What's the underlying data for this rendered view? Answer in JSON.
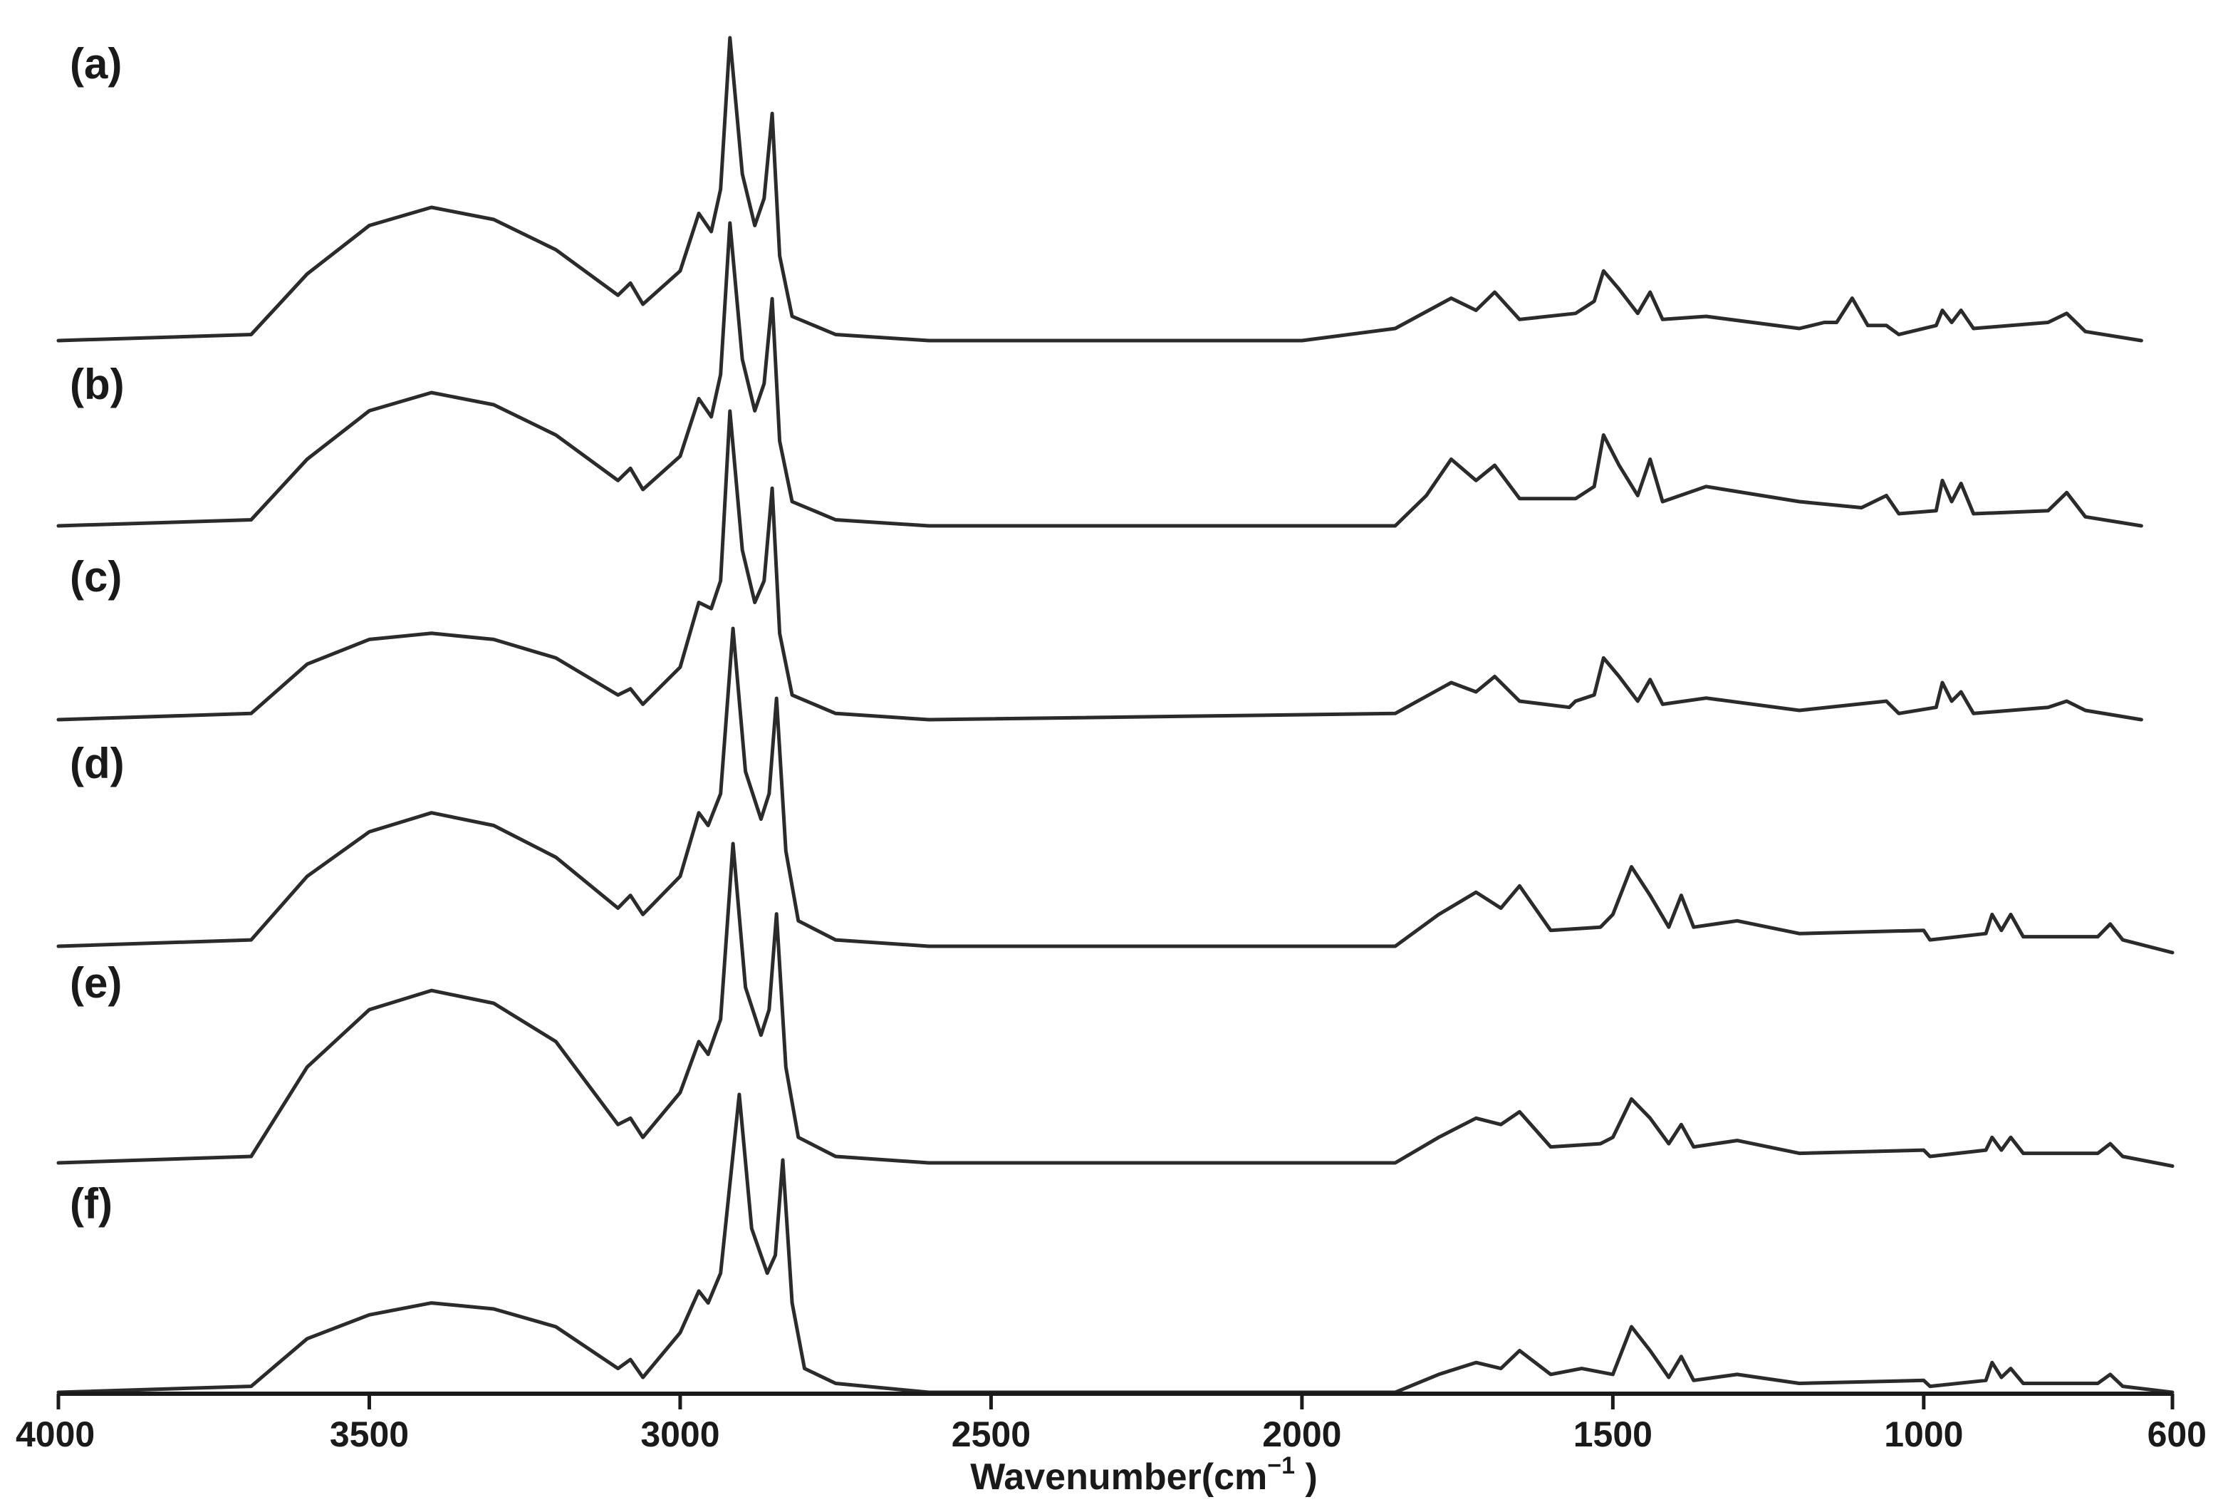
{
  "chart_data": {
    "type": "line",
    "xlabel": "Wavenumber(cm",
    "xlabel_superscript": "−1",
    "xlabel_close": " )",
    "xlim": [
      4000,
      600
    ],
    "x_reversed": true,
    "x_ticks": [
      "4000",
      "3500",
      "3000",
      "2500",
      "2000",
      "1500",
      "1000",
      "600"
    ],
    "y_axis_shown": false,
    "grid": false,
    "series": [
      {
        "name": "(a)",
        "x_end": 650,
        "points": [
          [
            4000,
            0
          ],
          [
            3690,
            0.02
          ],
          [
            3600,
            0.22
          ],
          [
            3500,
            0.38
          ],
          [
            3400,
            0.44
          ],
          [
            3300,
            0.4
          ],
          [
            3200,
            0.3
          ],
          [
            3100,
            0.15
          ],
          [
            3080,
            0.19
          ],
          [
            3060,
            0.12
          ],
          [
            3000,
            0.23
          ],
          [
            2970,
            0.42
          ],
          [
            2950,
            0.36
          ],
          [
            2935,
            0.5
          ],
          [
            2920,
            1.0
          ],
          [
            2900,
            0.55
          ],
          [
            2880,
            0.38
          ],
          [
            2865,
            0.47
          ],
          [
            2852,
            0.75
          ],
          [
            2840,
            0.28
          ],
          [
            2820,
            0.08
          ],
          [
            2750,
            0.02
          ],
          [
            2600,
            0
          ],
          [
            2000,
            0
          ],
          [
            1850,
            0.04
          ],
          [
            1760,
            0.14
          ],
          [
            1720,
            0.1
          ],
          [
            1690,
            0.16
          ],
          [
            1650,
            0.07
          ],
          [
            1560,
            0.09
          ],
          [
            1530,
            0.13
          ],
          [
            1515,
            0.23
          ],
          [
            1490,
            0.17
          ],
          [
            1460,
            0.09
          ],
          [
            1440,
            0.16
          ],
          [
            1420,
            0.07
          ],
          [
            1350,
            0.08
          ],
          [
            1200,
            0.04
          ],
          [
            1160,
            0.06
          ],
          [
            1140,
            0.06
          ],
          [
            1115,
            0.14
          ],
          [
            1090,
            0.05
          ],
          [
            1060,
            0.05
          ],
          [
            1040,
            0.02
          ],
          [
            980,
            0.05
          ],
          [
            970,
            0.1
          ],
          [
            955,
            0.06
          ],
          [
            940,
            0.1
          ],
          [
            920,
            0.04
          ],
          [
            800,
            0.06
          ],
          [
            770,
            0.09
          ],
          [
            740,
            0.03
          ],
          [
            650,
            0
          ]
        ]
      },
      {
        "name": "(b)",
        "x_end": 650,
        "points": [
          [
            4000,
            0
          ],
          [
            3690,
            0.02
          ],
          [
            3600,
            0.22
          ],
          [
            3500,
            0.38
          ],
          [
            3400,
            0.44
          ],
          [
            3300,
            0.4
          ],
          [
            3200,
            0.3
          ],
          [
            3100,
            0.15
          ],
          [
            3080,
            0.19
          ],
          [
            3060,
            0.12
          ],
          [
            3000,
            0.23
          ],
          [
            2970,
            0.42
          ],
          [
            2950,
            0.36
          ],
          [
            2935,
            0.5
          ],
          [
            2920,
            1.0
          ],
          [
            2900,
            0.55
          ],
          [
            2880,
            0.38
          ],
          [
            2865,
            0.47
          ],
          [
            2852,
            0.75
          ],
          [
            2840,
            0.28
          ],
          [
            2820,
            0.08
          ],
          [
            2750,
            0.02
          ],
          [
            2600,
            0
          ],
          [
            1850,
            0
          ],
          [
            1800,
            0.1
          ],
          [
            1760,
            0.22
          ],
          [
            1720,
            0.15
          ],
          [
            1690,
            0.2
          ],
          [
            1650,
            0.09
          ],
          [
            1560,
            0.09
          ],
          [
            1530,
            0.13
          ],
          [
            1515,
            0.3
          ],
          [
            1490,
            0.2
          ],
          [
            1460,
            0.1
          ],
          [
            1440,
            0.22
          ],
          [
            1420,
            0.08
          ],
          [
            1350,
            0.13
          ],
          [
            1200,
            0.08
          ],
          [
            1100,
            0.06
          ],
          [
            1060,
            0.1
          ],
          [
            1040,
            0.04
          ],
          [
            980,
            0.05
          ],
          [
            970,
            0.15
          ],
          [
            955,
            0.08
          ],
          [
            940,
            0.14
          ],
          [
            920,
            0.04
          ],
          [
            800,
            0.05
          ],
          [
            770,
            0.11
          ],
          [
            740,
            0.03
          ],
          [
            650,
            0
          ]
        ]
      },
      {
        "name": "(c)",
        "x_end": 650,
        "points": [
          [
            4000,
            0
          ],
          [
            3690,
            0.02
          ],
          [
            3600,
            0.18
          ],
          [
            3500,
            0.26
          ],
          [
            3400,
            0.28
          ],
          [
            3300,
            0.26
          ],
          [
            3200,
            0.2
          ],
          [
            3100,
            0.08
          ],
          [
            3080,
            0.1
          ],
          [
            3060,
            0.05
          ],
          [
            3000,
            0.17
          ],
          [
            2970,
            0.38
          ],
          [
            2950,
            0.36
          ],
          [
            2935,
            0.45
          ],
          [
            2920,
            1.0
          ],
          [
            2900,
            0.55
          ],
          [
            2880,
            0.38
          ],
          [
            2865,
            0.45
          ],
          [
            2852,
            0.75
          ],
          [
            2840,
            0.28
          ],
          [
            2820,
            0.08
          ],
          [
            2750,
            0.02
          ],
          [
            2600,
            0
          ],
          [
            1850,
            0.02
          ],
          [
            1760,
            0.12
          ],
          [
            1720,
            0.09
          ],
          [
            1690,
            0.14
          ],
          [
            1650,
            0.06
          ],
          [
            1570,
            0.04
          ],
          [
            1560,
            0.06
          ],
          [
            1530,
            0.08
          ],
          [
            1515,
            0.2
          ],
          [
            1490,
            0.14
          ],
          [
            1460,
            0.06
          ],
          [
            1440,
            0.13
          ],
          [
            1420,
            0.05
          ],
          [
            1350,
            0.07
          ],
          [
            1200,
            0.03
          ],
          [
            1060,
            0.06
          ],
          [
            1040,
            0.02
          ],
          [
            980,
            0.04
          ],
          [
            970,
            0.12
          ],
          [
            955,
            0.06
          ],
          [
            940,
            0.09
          ],
          [
            920,
            0.02
          ],
          [
            800,
            0.04
          ],
          [
            770,
            0.06
          ],
          [
            740,
            0.03
          ],
          [
            650,
            0
          ]
        ]
      },
      {
        "name": "(d)",
        "x_end": 600,
        "points": [
          [
            4000,
            0
          ],
          [
            3690,
            0.02
          ],
          [
            3600,
            0.22
          ],
          [
            3500,
            0.36
          ],
          [
            3400,
            0.42
          ],
          [
            3300,
            0.38
          ],
          [
            3200,
            0.28
          ],
          [
            3100,
            0.12
          ],
          [
            3080,
            0.16
          ],
          [
            3060,
            0.1
          ],
          [
            3000,
            0.22
          ],
          [
            2970,
            0.42
          ],
          [
            2955,
            0.38
          ],
          [
            2935,
            0.48
          ],
          [
            2915,
            1.0
          ],
          [
            2895,
            0.55
          ],
          [
            2870,
            0.4
          ],
          [
            2857,
            0.48
          ],
          [
            2845,
            0.78
          ],
          [
            2830,
            0.3
          ],
          [
            2810,
            0.08
          ],
          [
            2750,
            0.02
          ],
          [
            2600,
            0
          ],
          [
            1850,
            0
          ],
          [
            1780,
            0.1
          ],
          [
            1720,
            0.17
          ],
          [
            1680,
            0.12
          ],
          [
            1650,
            0.19
          ],
          [
            1600,
            0.05
          ],
          [
            1520,
            0.06
          ],
          [
            1500,
            0.1
          ],
          [
            1470,
            0.25
          ],
          [
            1440,
            0.16
          ],
          [
            1410,
            0.06
          ],
          [
            1390,
            0.16
          ],
          [
            1370,
            0.06
          ],
          [
            1300,
            0.08
          ],
          [
            1200,
            0.04
          ],
          [
            1000,
            0.05
          ],
          [
            990,
            0.02
          ],
          [
            900,
            0.04
          ],
          [
            890,
            0.1
          ],
          [
            875,
            0.05
          ],
          [
            860,
            0.1
          ],
          [
            840,
            0.03
          ],
          [
            720,
            0.03
          ],
          [
            700,
            0.07
          ],
          [
            680,
            0.02
          ],
          [
            600,
            -0.02
          ]
        ]
      },
      {
        "name": "(e)",
        "x_end": 600,
        "points": [
          [
            4000,
            0
          ],
          [
            3690,
            0.02
          ],
          [
            3600,
            0.3
          ],
          [
            3500,
            0.48
          ],
          [
            3400,
            0.54
          ],
          [
            3300,
            0.5
          ],
          [
            3200,
            0.38
          ],
          [
            3100,
            0.12
          ],
          [
            3080,
            0.14
          ],
          [
            3060,
            0.08
          ],
          [
            3000,
            0.22
          ],
          [
            2970,
            0.38
          ],
          [
            2955,
            0.34
          ],
          [
            2935,
            0.45
          ],
          [
            2915,
            1.0
          ],
          [
            2895,
            0.55
          ],
          [
            2870,
            0.4
          ],
          [
            2857,
            0.48
          ],
          [
            2845,
            0.78
          ],
          [
            2830,
            0.3
          ],
          [
            2810,
            0.08
          ],
          [
            2750,
            0.02
          ],
          [
            2600,
            0
          ],
          [
            1850,
            0
          ],
          [
            1780,
            0.08
          ],
          [
            1720,
            0.14
          ],
          [
            1680,
            0.12
          ],
          [
            1650,
            0.16
          ],
          [
            1600,
            0.05
          ],
          [
            1520,
            0.06
          ],
          [
            1500,
            0.08
          ],
          [
            1470,
            0.2
          ],
          [
            1440,
            0.14
          ],
          [
            1410,
            0.06
          ],
          [
            1390,
            0.12
          ],
          [
            1370,
            0.05
          ],
          [
            1300,
            0.07
          ],
          [
            1200,
            0.03
          ],
          [
            1000,
            0.04
          ],
          [
            990,
            0.02
          ],
          [
            900,
            0.04
          ],
          [
            890,
            0.08
          ],
          [
            875,
            0.04
          ],
          [
            860,
            0.08
          ],
          [
            840,
            0.03
          ],
          [
            720,
            0.03
          ],
          [
            700,
            0.06
          ],
          [
            680,
            0.02
          ],
          [
            600,
            -0.01
          ]
        ]
      },
      {
        "name": "(f)",
        "x_end": 600,
        "points": [
          [
            4000,
            0
          ],
          [
            3690,
            0.02
          ],
          [
            3600,
            0.18
          ],
          [
            3500,
            0.26
          ],
          [
            3400,
            0.3
          ],
          [
            3300,
            0.28
          ],
          [
            3200,
            0.22
          ],
          [
            3100,
            0.08
          ],
          [
            3080,
            0.11
          ],
          [
            3060,
            0.05
          ],
          [
            3000,
            0.2
          ],
          [
            2970,
            0.34
          ],
          [
            2955,
            0.3
          ],
          [
            2935,
            0.4
          ],
          [
            2905,
            1.0
          ],
          [
            2885,
            0.55
          ],
          [
            2860,
            0.4
          ],
          [
            2847,
            0.46
          ],
          [
            2835,
            0.78
          ],
          [
            2820,
            0.3
          ],
          [
            2800,
            0.08
          ],
          [
            2750,
            0.03
          ],
          [
            2600,
            0
          ],
          [
            1850,
            0
          ],
          [
            1780,
            0.06
          ],
          [
            1720,
            0.1
          ],
          [
            1680,
            0.08
          ],
          [
            1650,
            0.14
          ],
          [
            1600,
            0.06
          ],
          [
            1550,
            0.08
          ],
          [
            1500,
            0.06
          ],
          [
            1470,
            0.22
          ],
          [
            1440,
            0.14
          ],
          [
            1410,
            0.05
          ],
          [
            1390,
            0.12
          ],
          [
            1370,
            0.04
          ],
          [
            1300,
            0.06
          ],
          [
            1200,
            0.03
          ],
          [
            1000,
            0.04
          ],
          [
            990,
            0.02
          ],
          [
            900,
            0.04
          ],
          [
            890,
            0.1
          ],
          [
            875,
            0.05
          ],
          [
            860,
            0.08
          ],
          [
            840,
            0.03
          ],
          [
            720,
            0.03
          ],
          [
            700,
            0.06
          ],
          [
            680,
            0.02
          ],
          [
            600,
            0
          ]
        ]
      }
    ]
  }
}
